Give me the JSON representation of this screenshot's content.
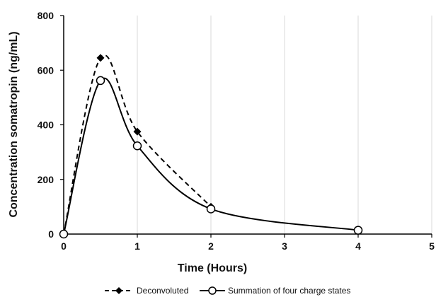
{
  "chart_data": {
    "type": "line",
    "xlabel": "Time (Hours)",
    "ylabel": "Concentration somatropin (ng/mL)",
    "xlim": [
      0,
      5
    ],
    "ylim": [
      0,
      800
    ],
    "xticks": [
      "0",
      "1",
      "2",
      "3",
      "4",
      "5"
    ],
    "yticks": [
      "0",
      "200",
      "400",
      "600",
      "800"
    ],
    "grid": "vertical",
    "legend_position": "bottom",
    "series": [
      {
        "name": "Deconvoluted",
        "line": "dashed",
        "marker": "filled-diamond",
        "color": "#000000",
        "x": [
          0,
          0.5,
          1,
          2
        ],
        "y": [
          0,
          645,
          375,
          100
        ]
      },
      {
        "name": "Summation of four charge states",
        "line": "solid",
        "marker": "open-circle",
        "color": "#000000",
        "x": [
          0,
          0.5,
          1,
          2,
          4
        ],
        "y": [
          0,
          562,
          323,
          92,
          14
        ]
      }
    ]
  }
}
